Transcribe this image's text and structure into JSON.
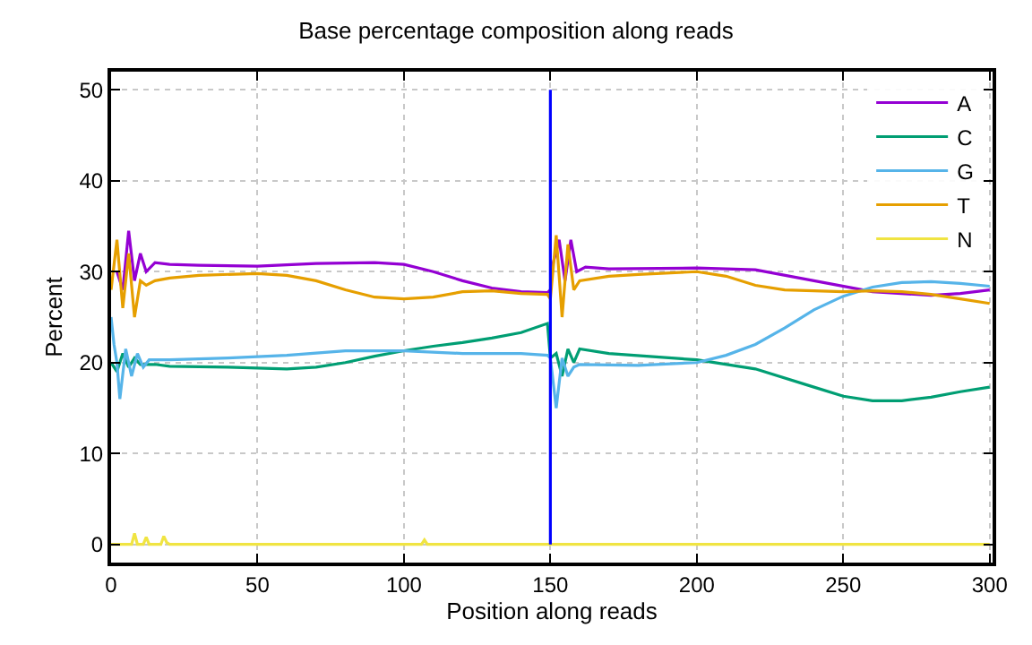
{
  "chart_data": {
    "type": "line",
    "title": "Base percentage composition along reads",
    "xlabel": "Position along reads",
    "ylabel": "Percent",
    "xlim": [
      0,
      301
    ],
    "ylim": [
      -2,
      52
    ],
    "xticks": [
      0,
      50,
      100,
      150,
      200,
      250,
      300
    ],
    "yticks": [
      0,
      10,
      20,
      30,
      40,
      50
    ],
    "grid": true,
    "legend": "top right",
    "line_style": "solid",
    "series": [
      {
        "name": "A",
        "color": "#9400d3",
        "x": [
          2,
          4,
          6,
          8,
          10,
          12,
          15,
          20,
          30,
          50,
          70,
          90,
          100,
          110,
          120,
          130,
          140,
          149,
          150,
          151,
          153,
          155,
          157,
          159,
          162,
          170,
          200,
          220,
          240,
          260,
          280,
          290,
          300
        ],
        "values": [
          30,
          28,
          34.5,
          29,
          32,
          30,
          31,
          30.8,
          30.7,
          30.6,
          30.9,
          31,
          30.8,
          30,
          29,
          28.2,
          27.8,
          27.7,
          28,
          31,
          33.5,
          29,
          33.5,
          30,
          30.5,
          30.3,
          30.4,
          30.2,
          29,
          27.8,
          27.4,
          27.6,
          28
        ]
      },
      {
        "name": "C",
        "color": "#009e73",
        "x": [
          0,
          2,
          4,
          6,
          8,
          10,
          15,
          20,
          40,
          60,
          70,
          80,
          90,
          100,
          110,
          120,
          130,
          140,
          149,
          150,
          152,
          154,
          156,
          158,
          160,
          170,
          200,
          220,
          240,
          250,
          260,
          270,
          280,
          290,
          300
        ],
        "values": [
          20,
          19,
          21,
          19.5,
          20.5,
          19.8,
          19.8,
          19.6,
          19.5,
          19.3,
          19.5,
          20,
          20.7,
          21.3,
          21.8,
          22.2,
          22.7,
          23.3,
          24.3,
          20.5,
          21,
          18.5,
          21.5,
          20,
          21.5,
          21,
          20.3,
          19.3,
          17.3,
          16.3,
          15.8,
          15.8,
          16.2,
          16.8,
          17.3
        ]
      },
      {
        "name": "G",
        "color": "#56b4e9",
        "x": [
          0,
          1,
          2,
          3,
          5,
          7,
          9,
          11,
          13,
          20,
          40,
          60,
          80,
          100,
          120,
          140,
          149,
          150,
          152,
          154,
          156,
          158,
          160,
          180,
          200,
          210,
          220,
          230,
          240,
          250,
          260,
          270,
          280,
          290,
          300
        ],
        "values": [
          25,
          22,
          20,
          16,
          21.5,
          18.5,
          21,
          19.5,
          20.3,
          20.3,
          20.5,
          20.8,
          21.3,
          21.3,
          21,
          21,
          20.8,
          20.5,
          15,
          20.5,
          18.5,
          19.5,
          19.8,
          19.7,
          20,
          20.8,
          22,
          23.8,
          25.8,
          27.3,
          28.3,
          28.8,
          28.9,
          28.7,
          28.4
        ]
      },
      {
        "name": "T",
        "color": "#e69f00",
        "x": [
          0,
          2,
          4,
          6,
          8,
          10,
          12,
          15,
          20,
          30,
          50,
          60,
          70,
          80,
          90,
          100,
          110,
          120,
          130,
          140,
          149,
          150,
          152,
          154,
          156,
          158,
          160,
          170,
          180,
          200,
          210,
          220,
          230,
          250,
          260,
          270,
          280,
          290,
          300
        ],
        "values": [
          28,
          33.5,
          26,
          32,
          25,
          29,
          28.5,
          29,
          29.3,
          29.6,
          29.8,
          29.6,
          29,
          28,
          27.2,
          27,
          27.2,
          27.8,
          27.9,
          27.6,
          27.5,
          27,
          34,
          25,
          33,
          28,
          29,
          29.5,
          29.7,
          30,
          29.5,
          28.5,
          28,
          27.8,
          27.9,
          27.8,
          27.5,
          27,
          26.5
        ]
      },
      {
        "name": "N",
        "color": "#f0e442",
        "x": [
          0,
          7,
          8,
          9,
          11,
          12,
          13,
          17,
          18,
          19,
          20,
          106,
          107,
          108,
          300
        ],
        "values": [
          0,
          0,
          1.2,
          0,
          0,
          0.8,
          0,
          0,
          0.9,
          0.2,
          0,
          0,
          0.5,
          0,
          0
        ]
      },
      {
        "color": "#0000ff",
        "x": [
          150,
          150
        ],
        "values": [
          0,
          50
        ]
      }
    ]
  }
}
